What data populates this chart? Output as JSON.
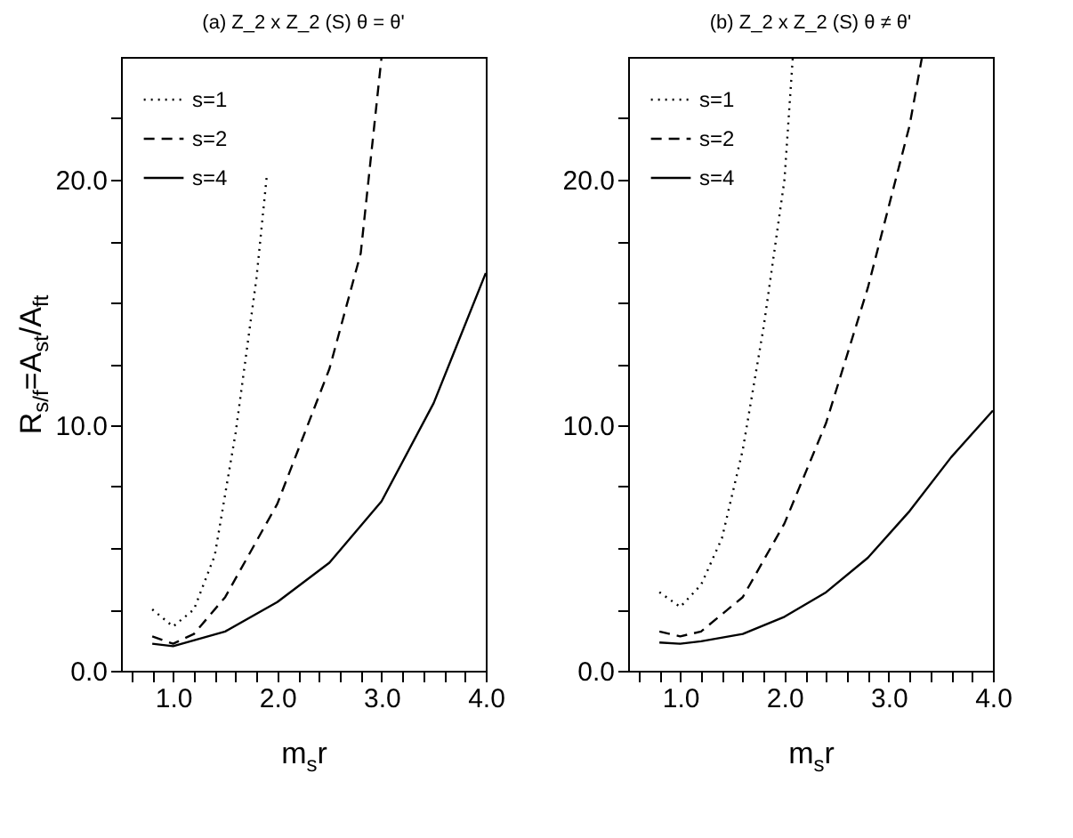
{
  "chart_data": [
    {
      "type": "line",
      "title": "(a) Z_2 x Z_2 (S)  θ = θ'",
      "xlabel": "m$_{s}$r",
      "ylabel": "R$_{s/f}$=A$_{st}$/A$_{ft}$",
      "xlim": [
        0.5,
        4.0
      ],
      "ylim": [
        0,
        25
      ],
      "xticks": [
        {
          "value": 0.6,
          "label": null
        },
        {
          "value": 0.8,
          "label": null
        },
        {
          "value": 1,
          "label": "1.0"
        },
        {
          "value": 1.2,
          "label": null
        },
        {
          "value": 1.4,
          "label": null
        },
        {
          "value": 1.6,
          "label": null
        },
        {
          "value": 1.8,
          "label": null
        },
        {
          "value": 2,
          "label": "2.0"
        },
        {
          "value": 2.2,
          "label": null
        },
        {
          "value": 2.4,
          "label": null
        },
        {
          "value": 2.6,
          "label": null
        },
        {
          "value": 2.8,
          "label": null
        },
        {
          "value": 3,
          "label": "3.0"
        },
        {
          "value": 3.2,
          "label": null
        },
        {
          "value": 3.4,
          "label": null
        },
        {
          "value": 3.6,
          "label": null
        },
        {
          "value": 3.8,
          "label": null
        },
        {
          "value": 4,
          "label": "4.0"
        }
      ],
      "yticks": [
        {
          "value": 0,
          "label": "0.0"
        },
        {
          "value": 2.5,
          "label": null
        },
        {
          "value": 5,
          "label": null
        },
        {
          "value": 7.5,
          "label": null
        },
        {
          "value": 10,
          "label": "10.0"
        },
        {
          "value": 12.5,
          "label": null
        },
        {
          "value": 15,
          "label": null
        },
        {
          "value": 17.5,
          "label": null
        },
        {
          "value": 20,
          "label": "20.0"
        },
        {
          "value": 22.5,
          "label": null
        }
      ],
      "legend": "top left",
      "series": [
        {
          "name": "s=1",
          "color": "#000000",
          "line_style": "dotted",
          "x": [
            0.8,
            1.0,
            1.2,
            1.4,
            1.6,
            1.8,
            1.9
          ],
          "values": [
            2.5,
            1.8,
            2.5,
            4.7,
            9.7,
            16.0,
            20.2
          ]
        },
        {
          "name": "s=2",
          "color": "#000000",
          "line_style": "dashed",
          "x": [
            0.8,
            1.0,
            1.2,
            1.5,
            2.0,
            2.5,
            2.8,
            3.0
          ],
          "values": [
            1.4,
            1.1,
            1.5,
            3.0,
            6.8,
            12.3,
            17.0,
            25
          ]
        },
        {
          "name": "s=4",
          "color": "#000000",
          "line_style": "solid",
          "x": [
            0.8,
            1.0,
            1.5,
            2.0,
            2.5,
            3.0,
            3.5,
            4.0
          ],
          "values": [
            1.1,
            1.0,
            1.6,
            2.8,
            4.4,
            6.9,
            10.9,
            16.2
          ]
        }
      ]
    },
    {
      "type": "line",
      "title": "(b) Z_2 x Z_2 (S)  θ ≠ θ'",
      "xlabel": "m$_{s}$r",
      "xlim": [
        0.5,
        4.0
      ],
      "ylim": [
        0,
        25
      ],
      "xticks": [
        {
          "value": 0.6,
          "label": null
        },
        {
          "value": 0.8,
          "label": null
        },
        {
          "value": 1,
          "label": "1.0"
        },
        {
          "value": 1.2,
          "label": null
        },
        {
          "value": 1.4,
          "label": null
        },
        {
          "value": 1.6,
          "label": null
        },
        {
          "value": 1.8,
          "label": null
        },
        {
          "value": 2,
          "label": "2.0"
        },
        {
          "value": 2.2,
          "label": null
        },
        {
          "value": 2.4,
          "label": null
        },
        {
          "value": 2.6,
          "label": null
        },
        {
          "value": 2.8,
          "label": null
        },
        {
          "value": 3,
          "label": "3.0"
        },
        {
          "value": 3.2,
          "label": null
        },
        {
          "value": 3.4,
          "label": null
        },
        {
          "value": 3.6,
          "label": null
        },
        {
          "value": 3.8,
          "label": null
        },
        {
          "value": 4,
          "label": "4.0"
        }
      ],
      "yticks": [
        {
          "value": 0,
          "label": "0.0"
        },
        {
          "value": 2.5,
          "label": null
        },
        {
          "value": 5,
          "label": null
        },
        {
          "value": 7.5,
          "label": null
        },
        {
          "value": 10,
          "label": "10.0"
        },
        {
          "value": 12.5,
          "label": null
        },
        {
          "value": 15,
          "label": null
        },
        {
          "value": 17.5,
          "label": null
        },
        {
          "value": 20,
          "label": "20.0"
        },
        {
          "value": 22.5,
          "label": null
        }
      ],
      "legend": "top left",
      "series": [
        {
          "name": "s=1",
          "color": "#000000",
          "line_style": "dotted",
          "x": [
            0.8,
            1.0,
            1.2,
            1.4,
            1.6,
            1.8,
            2.0,
            2.08
          ],
          "values": [
            3.2,
            2.6,
            3.5,
            5.4,
            9.0,
            14.0,
            20.0,
            25
          ]
        },
        {
          "name": "s=2",
          "color": "#000000",
          "line_style": "dashed",
          "x": [
            0.8,
            1.0,
            1.2,
            1.6,
            2.0,
            2.4,
            2.8,
            3.2,
            3.32
          ],
          "values": [
            1.6,
            1.4,
            1.6,
            3.0,
            6.0,
            10.1,
            15.6,
            22.2,
            25
          ]
        },
        {
          "name": "s=4",
          "color": "#000000",
          "line_style": "solid",
          "x": [
            0.8,
            1.0,
            1.2,
            1.6,
            2.0,
            2.4,
            2.8,
            3.2,
            3.6,
            4.0
          ],
          "values": [
            1.15,
            1.1,
            1.2,
            1.5,
            2.2,
            3.2,
            4.6,
            6.5,
            8.7,
            10.6
          ]
        }
      ]
    }
  ]
}
